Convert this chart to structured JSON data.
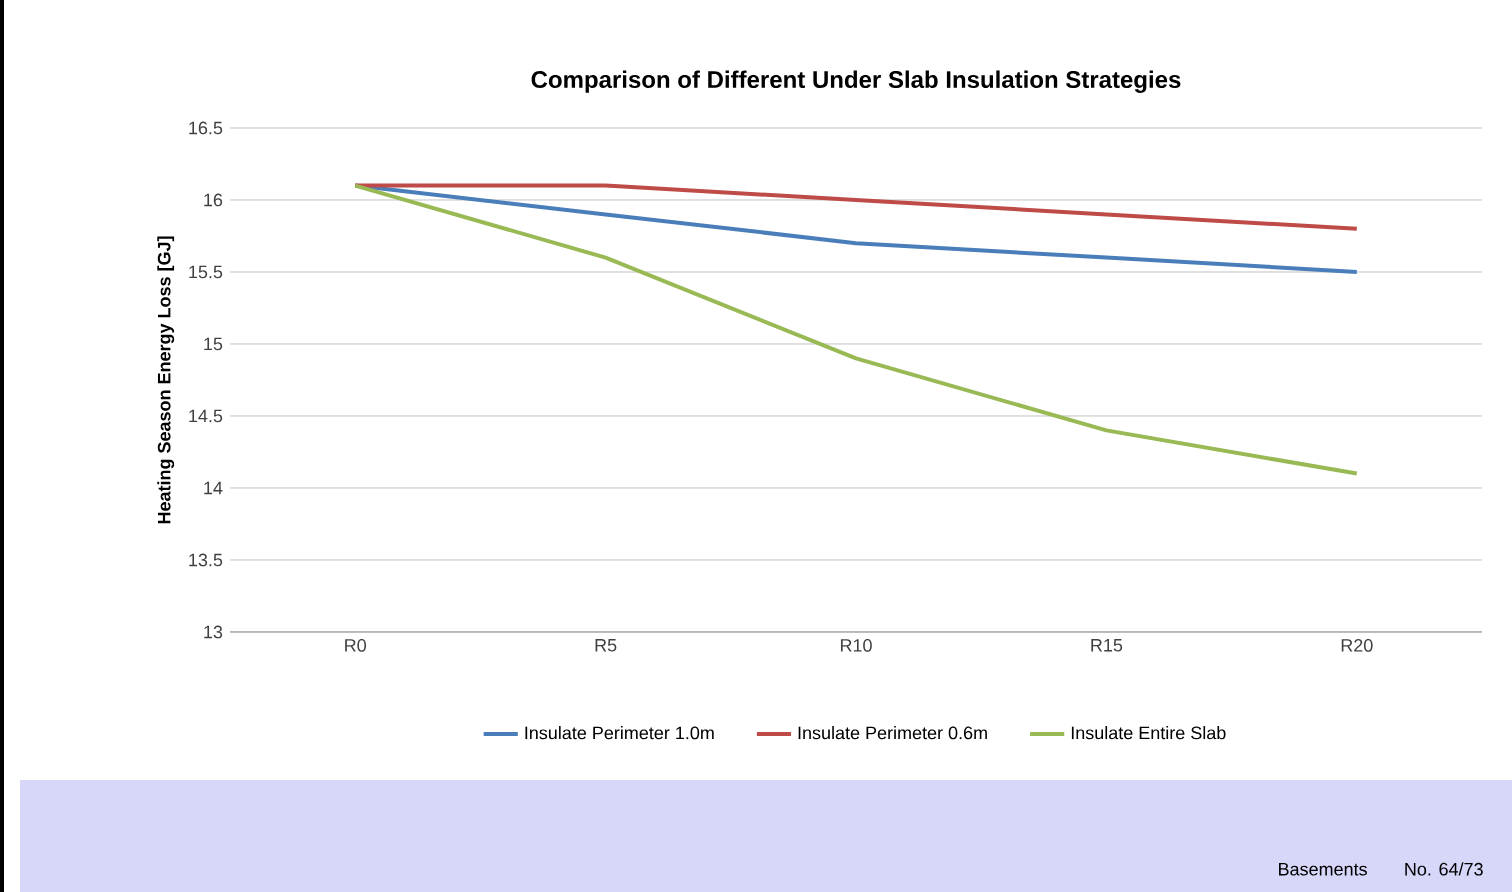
{
  "chart_data": {
    "type": "line",
    "title": "Comparison of Different Under Slab Insulation Strategies",
    "ylabel": "Heating Season Energy Loss [GJ]",
    "categories": [
      "R0",
      "R5",
      "R10",
      "R15",
      "R20"
    ],
    "series": [
      {
        "name": "Insulate Perimeter 1.0m",
        "color": "#4a7ebb",
        "values": [
          16.1,
          15.9,
          15.7,
          15.6,
          15.5
        ]
      },
      {
        "name": "Insulate Perimeter 0.6m",
        "color": "#be4b48",
        "values": [
          16.1,
          16.1,
          16.0,
          15.9,
          15.8
        ]
      },
      {
        "name": "Insulate Entire Slab",
        "color": "#98b954",
        "values": [
          16.1,
          15.6,
          14.9,
          14.4,
          14.1
        ]
      }
    ],
    "ylim": [
      13,
      16.5
    ],
    "yticks": [
      13,
      13.5,
      14,
      14.5,
      15,
      15.5,
      16,
      16.5
    ],
    "grid": "y",
    "legend": "bottom",
    "marker": "none",
    "line_style": "solid",
    "annotations": [
      "Basements",
      "No. 64/73"
    ]
  }
}
